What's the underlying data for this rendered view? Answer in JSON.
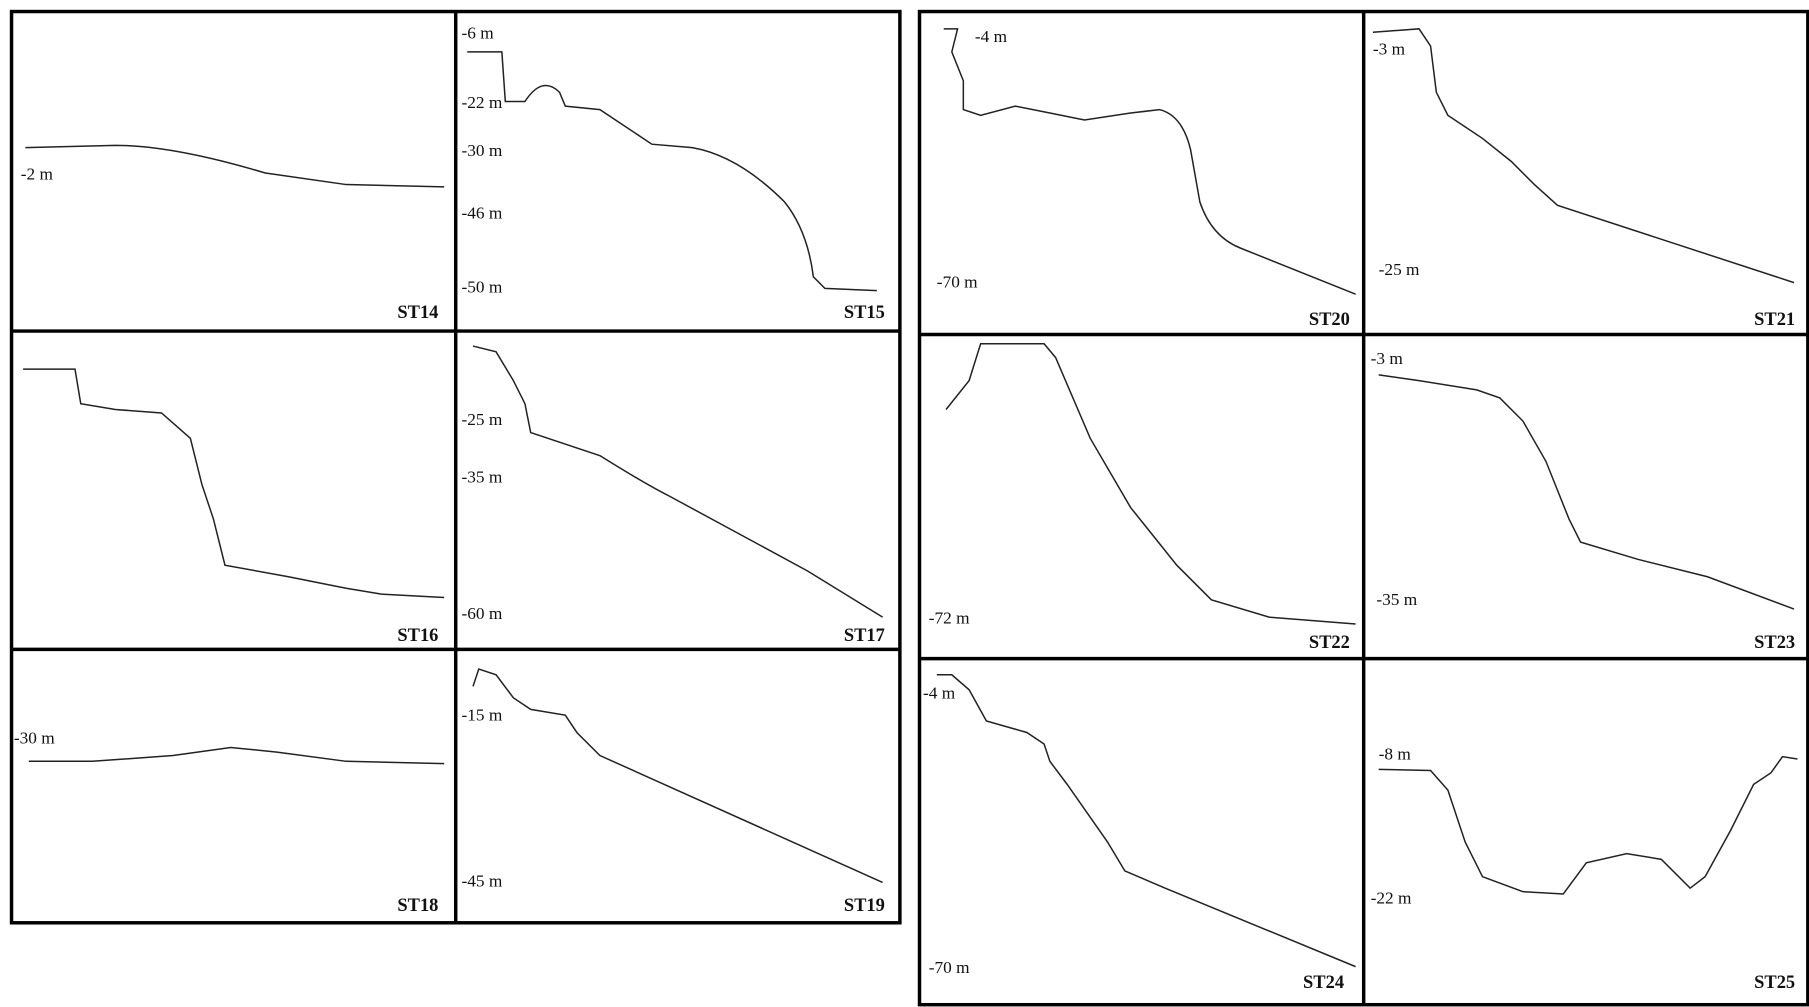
{
  "panels": [
    {
      "station": "ST14",
      "depth_labels": [
        "-2 m"
      ]
    },
    {
      "station": "ST15",
      "depth_labels": [
        "-6 m",
        "-22 m",
        "-30 m",
        "-46 m",
        "-50 m"
      ]
    },
    {
      "station": "ST16",
      "depth_labels": []
    },
    {
      "station": "ST17",
      "depth_labels": [
        "-25 m",
        "-35 m",
        "-60 m"
      ]
    },
    {
      "station": "ST18",
      "depth_labels": [
        "-30 m"
      ]
    },
    {
      "station": "ST19",
      "depth_labels": [
        "-15 m",
        "-45 m"
      ]
    },
    {
      "station": "ST20",
      "depth_labels": [
        "-4 m",
        "-70 m"
      ]
    },
    {
      "station": "ST21",
      "depth_labels": [
        "-3 m",
        "-25 m"
      ]
    },
    {
      "station": "ST22",
      "depth_labels": [
        "-72 m"
      ]
    },
    {
      "station": "ST23",
      "depth_labels": [
        "-3 m",
        "-35 m"
      ]
    },
    {
      "station": "ST24",
      "depth_labels": [
        "-4 m",
        "-70 m"
      ]
    },
    {
      "station": "ST25",
      "depth_labels": [
        "-8 m",
        "-22 m"
      ]
    }
  ]
}
